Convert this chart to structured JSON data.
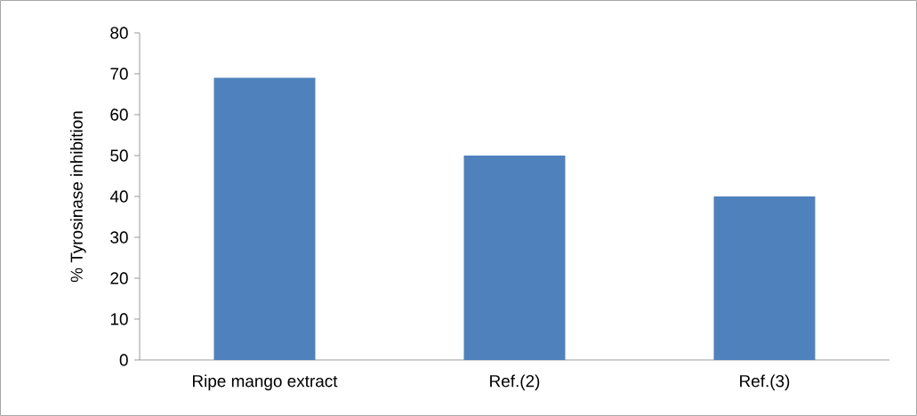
{
  "chart_data": {
    "type": "bar",
    "ylabel": "% Tyrosinase  inhibition",
    "categories": [
      "Ripe mango extract",
      "Ref.(2)",
      "Ref.(3)"
    ],
    "values": [
      69,
      50,
      40
    ],
    "color": "#4f81bd",
    "ylim": [
      0,
      80
    ],
    "yticks": [
      0,
      10,
      20,
      30,
      40,
      50,
      60,
      70,
      80
    ]
  }
}
